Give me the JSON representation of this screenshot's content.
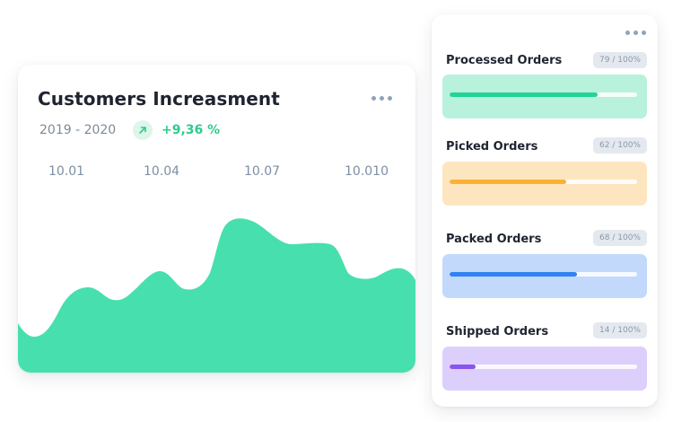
{
  "customers": {
    "title": "Customers Increasment",
    "period": "2019 - 2020",
    "trend_icon": "arrow-up-right-icon",
    "change": "+9,36 %",
    "menu_icon": "more-horizontal-icon",
    "x_ticks": [
      "10.01",
      "10.04",
      "10.07",
      "10.010"
    ],
    "area_color": "#47dfad"
  },
  "orders": {
    "menu_icon": "more-horizontal-icon",
    "items": [
      {
        "label": "Processed Orders",
        "badge": "79 / 100%",
        "value": 0.79,
        "box_color": "#b8f2dc",
        "bar_color": "#22d39a"
      },
      {
        "label": "Picked Orders",
        "badge": "62 / 100%",
        "value": 0.62,
        "box_color": "#fde6bf",
        "bar_color": "#f9b234"
      },
      {
        "label": "Packed Orders",
        "badge": "68 / 100%",
        "value": 0.68,
        "box_color": "#c2d9fc",
        "bar_color": "#3181f2"
      },
      {
        "label": "Shipped Orders",
        "badge": "14 / 100%",
        "value": 0.14,
        "box_color": "#dccffb",
        "bar_color": "#8a55ee"
      }
    ]
  }
}
